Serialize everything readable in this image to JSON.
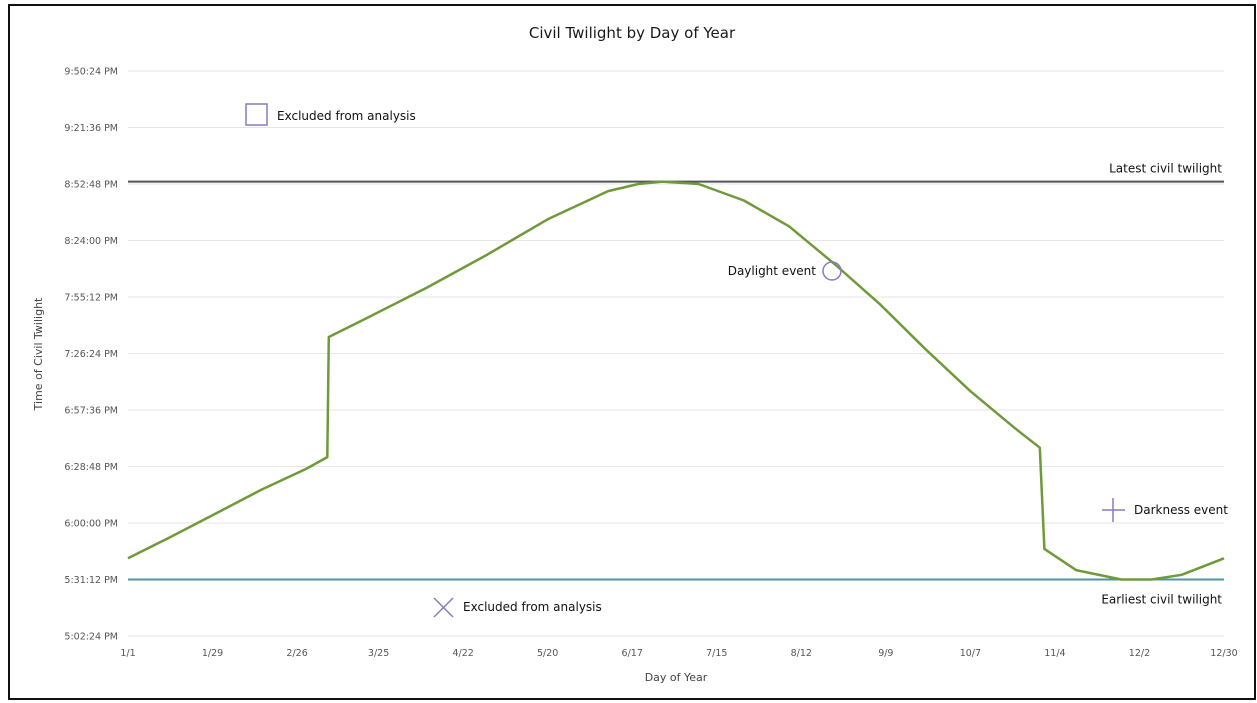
{
  "chart_data": {
    "type": "line",
    "title": "Civil Twilight by Day of Year",
    "xlabel": "Day of Year",
    "ylabel": "Time of Civil Twilight",
    "x_ticks": [
      "1/1",
      "1/29",
      "2/26",
      "3/25",
      "4/22",
      "5/20",
      "6/17",
      "7/15",
      "8/12",
      "9/9",
      "10/7",
      "11/4",
      "12/2",
      "12/30"
    ],
    "x_tick_days": [
      1,
      29,
      57,
      84,
      112,
      140,
      168,
      196,
      224,
      252,
      280,
      308,
      336,
      364
    ],
    "y_ticks": [
      "9:50:24 PM",
      "9:21:36 PM",
      "8:52:48 PM",
      "8:24:00 PM",
      "7:55:12 PM",
      "7:26:24 PM",
      "6:57:36 PM",
      "6:28:48 PM",
      "6:00:00 PM",
      "5:31:12 PM",
      "5:02:24 PM"
    ],
    "y_tick_hours": [
      21.84,
      21.36,
      20.88,
      20.4,
      19.92,
      19.44,
      18.96,
      18.48,
      18.0,
      17.52,
      17.04
    ],
    "xlim": [
      1,
      364
    ],
    "ylim": [
      17.04,
      21.84
    ],
    "y_unit": "hours after midnight",
    "grid": true,
    "series": [
      {
        "color": "#6f9a3a",
        "x": [
          1,
          15,
          30,
          45,
          60,
          67,
          67.5,
          80,
          100,
          120,
          140,
          160,
          170,
          178,
          190,
          205,
          220,
          235,
          250,
          265,
          280,
          295,
          303,
          304.5,
          315,
          330,
          340,
          350,
          364
        ],
        "y": [
          17.7,
          17.88,
          18.08,
          18.28,
          18.46,
          18.56,
          19.58,
          19.74,
          20.0,
          20.28,
          20.58,
          20.82,
          20.88,
          20.9,
          20.88,
          20.74,
          20.52,
          20.2,
          19.86,
          19.48,
          19.12,
          18.8,
          18.64,
          17.78,
          17.6,
          17.52,
          17.52,
          17.56,
          17.7
        ]
      }
    ],
    "reference_lines": [
      {
        "label": "Latest civil twilight",
        "y": 20.9,
        "color": "#555555"
      },
      {
        "label": "Earliest civil twilight",
        "y": 17.52,
        "color": "#4e96a8"
      }
    ],
    "legend_markers": [
      {
        "label": "Excluded from analysis",
        "shape": "square",
        "color": "#8a79c4"
      },
      {
        "label": "Daylight event",
        "shape": "circle",
        "color": "#8a79c4"
      },
      {
        "label": "Excluded from analysis",
        "shape": "x",
        "color": "#8a79c4"
      },
      {
        "label": "Darkness event",
        "shape": "plus",
        "color": "#8a79c4"
      }
    ]
  }
}
